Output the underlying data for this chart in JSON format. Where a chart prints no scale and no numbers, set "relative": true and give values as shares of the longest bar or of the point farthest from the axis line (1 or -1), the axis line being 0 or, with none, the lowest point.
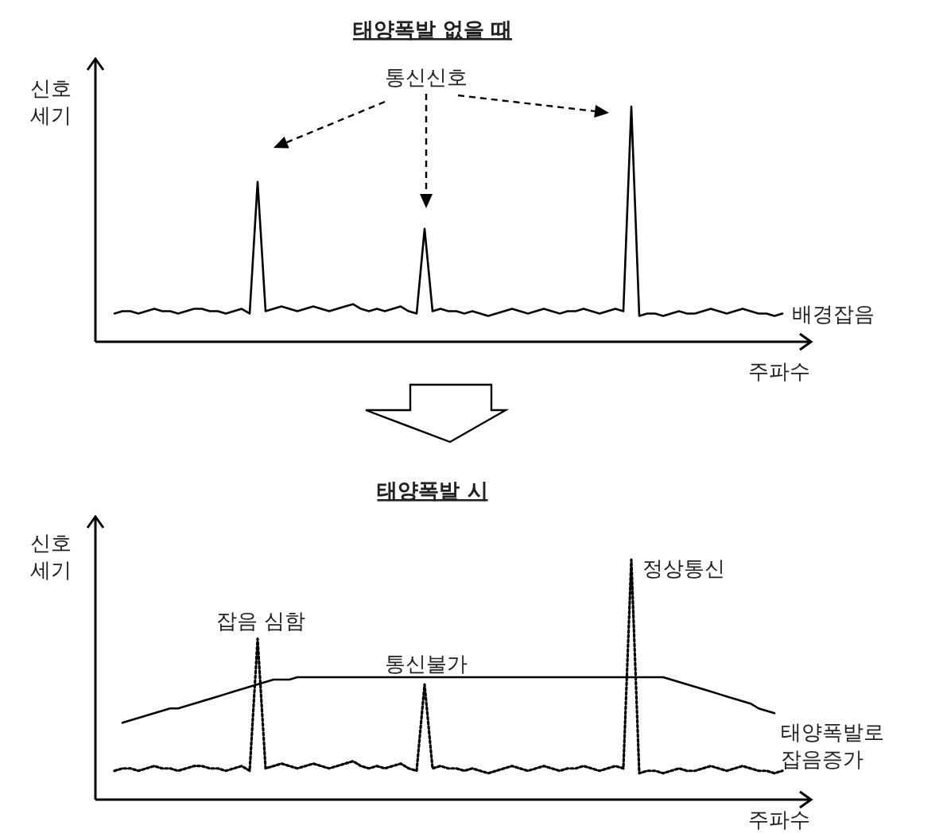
{
  "chart_data": [
    {
      "type": "line",
      "title": "태양폭발 없을 때",
      "xlabel": "주파수",
      "ylabel": "신호\n세기",
      "relative": true,
      "categories": [
        null,
        null,
        null,
        null,
        null,
        null,
        null,
        null,
        null,
        null,
        null,
        null,
        null,
        null,
        null,
        null,
        null,
        null,
        null,
        null,
        null,
        null,
        null,
        null,
        null,
        null,
        null,
        null,
        null,
        null,
        null,
        null,
        null,
        null,
        null,
        null,
        null,
        null,
        null,
        null,
        null,
        null,
        null,
        null,
        null,
        null,
        null,
        null,
        null,
        null,
        null,
        null,
        null,
        null,
        null,
        null,
        null,
        null,
        null,
        null,
        null,
        null,
        null,
        null,
        null,
        null,
        null,
        null,
        null,
        null,
        null,
        null,
        null,
        null,
        null,
        null,
        null,
        null,
        null,
        null,
        null,
        null,
        null,
        null,
        null
      ],
      "series": [
        {
          "color": "#000000",
          "line_style": "solid",
          "values": [
            0.12,
            0.13,
            0.13,
            0.12,
            0.13,
            0.14,
            0.13,
            0.13,
            0.12,
            0.13,
            0.14,
            0.14,
            0.13,
            0.13,
            0.12,
            0.13,
            0.14,
            0.12,
            0.68,
            0.13,
            0.14,
            0.15,
            0.14,
            0.13,
            0.14,
            0.15,
            0.14,
            0.13,
            0.14,
            0.15,
            0.16,
            0.14,
            0.13,
            0.14,
            0.13,
            0.14,
            0.15,
            0.13,
            0.12,
            0.48,
            0.13,
            0.14,
            0.13,
            0.13,
            0.12,
            0.13,
            0.12,
            0.11,
            0.12,
            0.13,
            0.14,
            0.13,
            0.12,
            0.13,
            0.14,
            0.13,
            0.12,
            0.13,
            0.13,
            0.14,
            0.13,
            0.12,
            0.13,
            0.14,
            0.13,
            1,
            0.11,
            0.12,
            0.12,
            0.11,
            0.12,
            0.13,
            0.12,
            0.12,
            0.13,
            0.14,
            0.13,
            0.12,
            0.13,
            0.14,
            0.13,
            0.12,
            0.12,
            0.11,
            0.12
          ]
        }
      ],
      "annotations": [
        "통신신호",
        "배경잡음"
      ]
    },
    {
      "type": "line",
      "title": "태양폭발 시",
      "xlabel": "주파수",
      "ylabel": "신호\n세기",
      "relative": true,
      "categories": [
        null,
        null,
        null,
        null,
        null,
        null,
        null,
        null,
        null,
        null,
        null,
        null,
        null,
        null,
        null,
        null,
        null,
        null,
        null,
        null,
        null,
        null,
        null,
        null,
        null,
        null,
        null,
        null,
        null,
        null,
        null,
        null,
        null,
        null,
        null,
        null,
        null,
        null,
        null,
        null,
        null,
        null,
        null,
        null,
        null,
        null,
        null,
        null,
        null,
        null,
        null,
        null,
        null,
        null,
        null,
        null,
        null,
        null,
        null,
        null,
        null,
        null,
        null,
        null,
        null,
        null,
        null,
        null,
        null,
        null,
        null,
        null,
        null,
        null,
        null,
        null,
        null,
        null,
        null,
        null,
        null,
        null,
        null,
        null,
        null
      ],
      "series": [
        {
          "color": "#000000",
          "line_style": "solid",
          "values": [
            null,
            0.32,
            0.33,
            0.34,
            0.35,
            0.36,
            0.37,
            0.38,
            0.38,
            0.39,
            0.4,
            0.41,
            0.42,
            0.43,
            0.44,
            0.45,
            0.46,
            0.47,
            0.48,
            0.49,
            0.5,
            0.5,
            0.5,
            0.51,
            0.51,
            0.51,
            0.51,
            0.51,
            0.51,
            0.51,
            0.51,
            0.51,
            0.51,
            0.51,
            0.51,
            0.51,
            0.51,
            0.51,
            0.51,
            0.51,
            0.51,
            0.51,
            0.51,
            0.51,
            0.51,
            0.51,
            0.51,
            0.51,
            0.51,
            0.51,
            0.51,
            0.51,
            0.51,
            0.51,
            0.51,
            0.51,
            0.51,
            0.51,
            0.51,
            0.51,
            0.51,
            0.51,
            0.51,
            0.51,
            0.51,
            0.51,
            0.51,
            0.51,
            0.51,
            0.51,
            0.5,
            0.49,
            0.48,
            0.47,
            0.46,
            0.45,
            0.44,
            0.43,
            0.42,
            0.41,
            0.4,
            0.38,
            0.37,
            0.36,
            null
          ]
        },
        {
          "color": "#000000",
          "line_style": "dotted",
          "values": [
            0.12,
            0.13,
            0.13,
            0.12,
            0.13,
            0.14,
            0.13,
            0.13,
            0.12,
            0.13,
            0.14,
            0.14,
            0.13,
            0.13,
            0.12,
            0.13,
            0.14,
            0.12,
            0.67,
            0.13,
            0.14,
            0.15,
            0.14,
            0.13,
            0.14,
            0.15,
            0.14,
            0.13,
            0.14,
            0.15,
            0.16,
            0.14,
            0.13,
            0.14,
            0.13,
            0.14,
            0.15,
            0.13,
            0.12,
            0.48,
            0.13,
            0.14,
            0.13,
            0.13,
            0.12,
            0.13,
            0.12,
            0.11,
            0.12,
            0.13,
            0.14,
            0.13,
            0.12,
            0.13,
            0.14,
            0.13,
            0.12,
            0.13,
            0.13,
            0.14,
            0.13,
            0.12,
            0.13,
            0.14,
            0.13,
            1,
            0.11,
            0.12,
            0.12,
            0.11,
            0.12,
            0.13,
            0.12,
            0.12,
            0.13,
            0.14,
            0.13,
            0.12,
            0.13,
            0.14,
            0.13,
            0.12,
            0.12,
            0.11,
            0.12
          ]
        }
      ],
      "annotations": [
        "잡음 심함",
        "통신불가",
        "정상통신",
        "태양폭발로\n잡음증가"
      ]
    }
  ]
}
